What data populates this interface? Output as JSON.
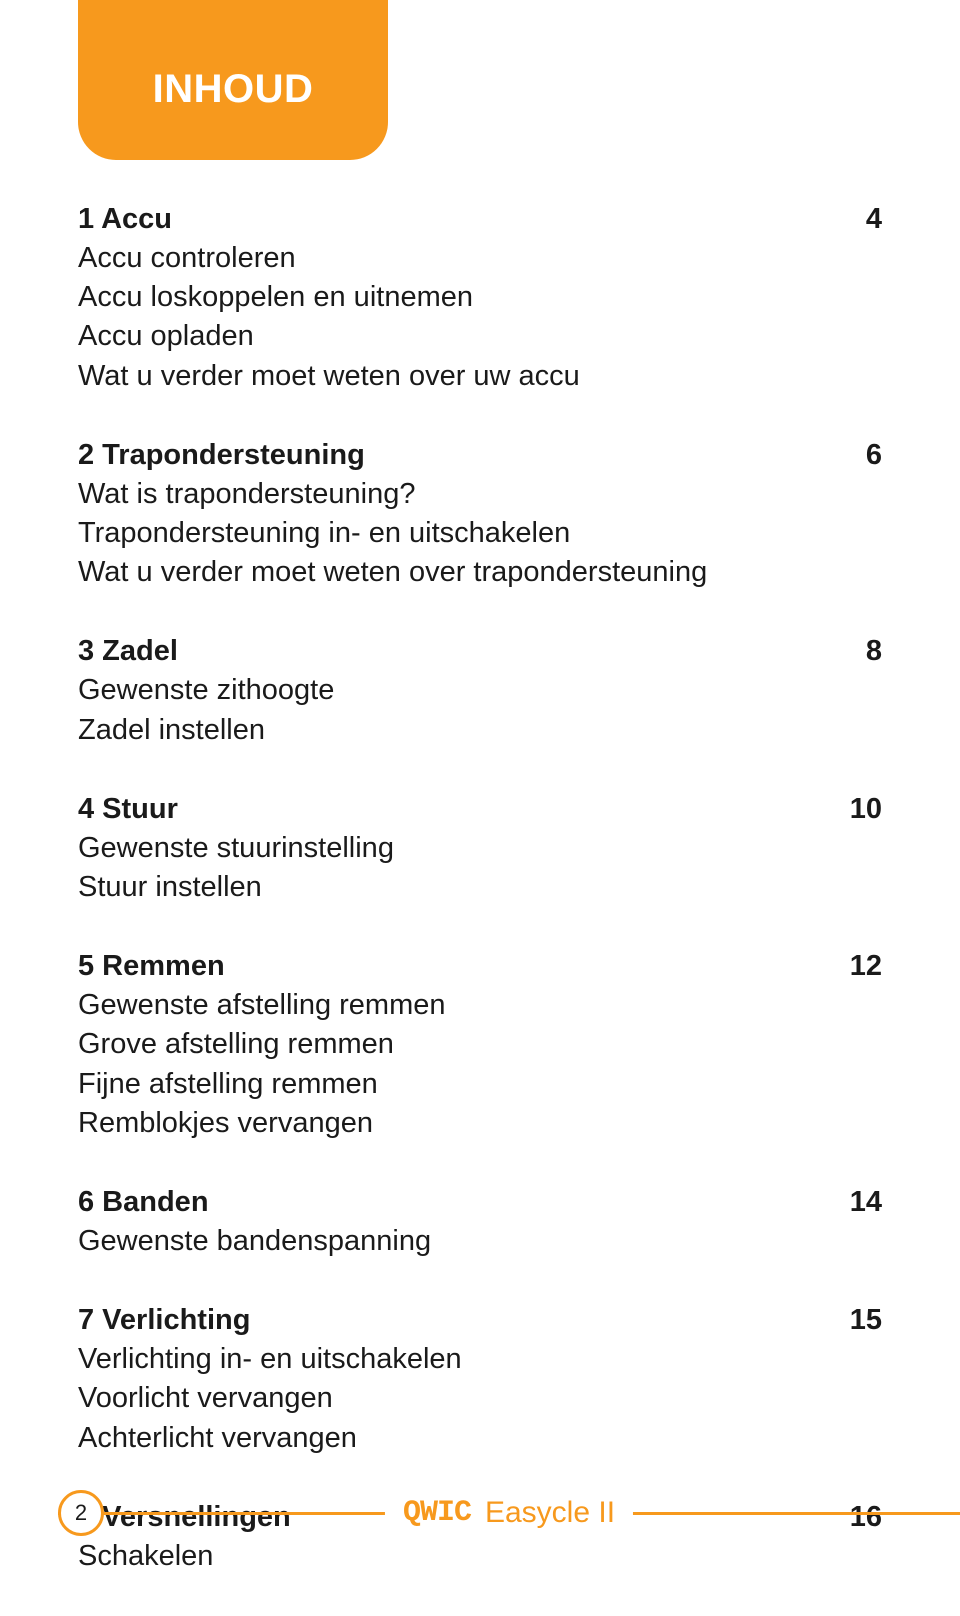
{
  "colors": {
    "accent": "#f7991d",
    "text": "#1a1a1a",
    "white": "#ffffff"
  },
  "typography": {
    "body_fontsize_pt": 22,
    "title_fontsize_pt": 30,
    "font_family": "Myriad Pro / sans-serif"
  },
  "header": {
    "title": "INHOUD"
  },
  "toc": [
    {
      "title": "1 Accu",
      "page": "4",
      "items": [
        "Accu controleren",
        "Accu loskoppelen en uitnemen",
        "Accu opladen",
        "Wat u verder moet weten over uw accu"
      ]
    },
    {
      "title": "2 Trapondersteuning",
      "page": "6",
      "items": [
        "Wat is trapondersteuning?",
        "Trapondersteuning in- en uitschakelen",
        "Wat u verder moet weten over trapondersteuning"
      ]
    },
    {
      "title": "3 Zadel",
      "page": "8",
      "items": [
        "Gewenste zithoogte",
        "Zadel instellen"
      ]
    },
    {
      "title": "4 Stuur",
      "page": "10",
      "items": [
        "Gewenste stuurinstelling",
        "Stuur instellen"
      ]
    },
    {
      "title": "5 Remmen",
      "page": "12",
      "items": [
        "Gewenste afstelling remmen",
        "Grove afstelling remmen",
        "Fijne afstelling remmen",
        "Remblokjes vervangen"
      ]
    },
    {
      "title": "6 Banden",
      "page": "14",
      "items": [
        "Gewenste bandenspanning"
      ]
    },
    {
      "title": "7 Verlichting",
      "page": "15",
      "items": [
        "Verlichting in- en uitschakelen",
        "Voorlicht vervangen",
        "Achterlicht vervangen"
      ]
    },
    {
      "title": "8 Versnellingen",
      "page": "16",
      "items": [
        "Schakelen"
      ]
    }
  ],
  "footer": {
    "page_number": "2",
    "brand_logo": "QWIC",
    "product_name": "Easycle II"
  }
}
